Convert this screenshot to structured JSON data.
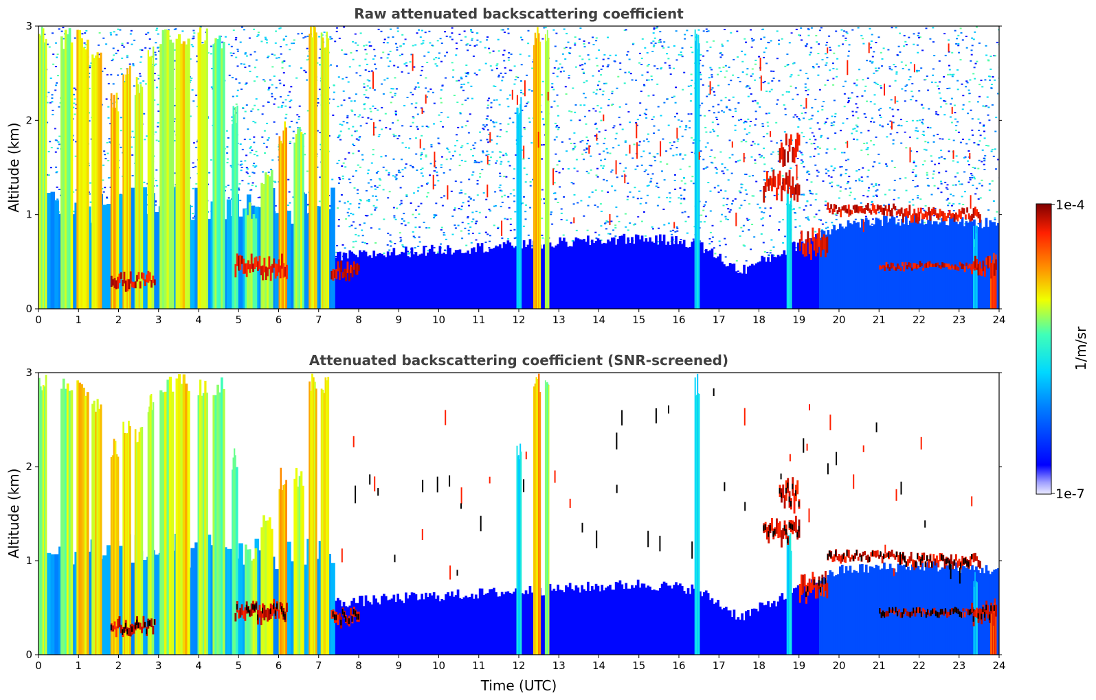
{
  "chart_data": [
    {
      "type": "heatmap",
      "title": "Raw attenuated backscattering coefficient",
      "xlabel": "",
      "ylabel": "Altitude (km)",
      "xlim": [
        0,
        24
      ],
      "ylim": [
        0,
        3
      ],
      "xticks": [
        "0",
        "1",
        "2",
        "3",
        "4",
        "5",
        "6",
        "7",
        "8",
        "9",
        "10",
        "11",
        "12",
        "13",
        "14",
        "15",
        "16",
        "17",
        "18",
        "19",
        "20",
        "21",
        "22",
        "23",
        "24"
      ],
      "yticks": [
        "0",
        "1",
        "2",
        "3"
      ],
      "screened": false,
      "features": {
        "vertical_streaks": [
          {
            "x": 0.1,
            "w": 0.2,
            "top": 3.0,
            "level": 0.62
          },
          {
            "x": 0.7,
            "w": 0.3,
            "top": 3.0,
            "level": 0.62
          },
          {
            "x": 1.1,
            "w": 0.3,
            "top": 3.0,
            "level": 0.72
          },
          {
            "x": 1.45,
            "w": 0.25,
            "top": 2.8,
            "level": 0.7
          },
          {
            "x": 1.9,
            "w": 0.2,
            "top": 2.3,
            "level": 0.72
          },
          {
            "x": 2.2,
            "w": 0.2,
            "top": 2.6,
            "level": 0.7
          },
          {
            "x": 2.5,
            "w": 0.2,
            "top": 2.5,
            "level": 0.66
          },
          {
            "x": 2.8,
            "w": 0.15,
            "top": 2.8,
            "level": 0.62
          },
          {
            "x": 3.2,
            "w": 0.35,
            "top": 3.0,
            "level": 0.62
          },
          {
            "x": 3.6,
            "w": 0.35,
            "top": 3.0,
            "level": 0.7
          },
          {
            "x": 4.1,
            "w": 0.25,
            "top": 3.0,
            "level": 0.64
          },
          {
            "x": 4.5,
            "w": 0.3,
            "top": 3.0,
            "level": 0.58
          },
          {
            "x": 4.9,
            "w": 0.15,
            "top": 2.2,
            "level": 0.56
          },
          {
            "x": 5.3,
            "w": 0.3,
            "top": 1.2,
            "level": 0.6
          },
          {
            "x": 5.7,
            "w": 0.3,
            "top": 1.5,
            "level": 0.64
          },
          {
            "x": 6.1,
            "w": 0.2,
            "top": 2.0,
            "level": 0.74
          },
          {
            "x": 6.5,
            "w": 0.25,
            "top": 2.0,
            "level": 0.62
          },
          {
            "x": 6.85,
            "w": 0.2,
            "top": 3.0,
            "level": 0.7
          },
          {
            "x": 7.15,
            "w": 0.2,
            "top": 3.0,
            "level": 0.66
          },
          {
            "x": 12.0,
            "w": 0.12,
            "top": 2.3,
            "level": 0.44
          },
          {
            "x": 12.45,
            "w": 0.18,
            "top": 3.0,
            "level": 0.74
          },
          {
            "x": 12.7,
            "w": 0.1,
            "top": 3.0,
            "level": 0.6
          },
          {
            "x": 16.45,
            "w": 0.12,
            "top": 3.0,
            "level": 0.42
          },
          {
            "x": 18.75,
            "w": 0.12,
            "top": 1.3,
            "level": 0.44
          },
          {
            "x": 23.4,
            "w": 0.1,
            "top": 0.9,
            "level": 0.4
          },
          {
            "x": 23.85,
            "w": 0.15,
            "top": 0.6,
            "level": 0.86
          }
        ],
        "cloud_layers": [
          {
            "x0": 1.8,
            "x1": 2.9,
            "y": 0.3,
            "thickness": 0.12
          },
          {
            "x0": 4.9,
            "x1": 6.2,
            "y": 0.45,
            "thickness": 0.15
          },
          {
            "x0": 7.3,
            "x1": 8.0,
            "y": 0.4,
            "thickness": 0.12
          },
          {
            "x0": 18.1,
            "x1": 19.0,
            "y": 1.3,
            "thickness": 0.18
          },
          {
            "x0": 18.5,
            "x1": 19.0,
            "y": 1.7,
            "thickness": 0.2
          },
          {
            "x0": 19.0,
            "x1": 19.7,
            "y": 0.7,
            "thickness": 0.2
          },
          {
            "x0": 19.7,
            "x1": 21.5,
            "y": 1.05,
            "thickness": 0.08
          },
          {
            "x0": 21.5,
            "x1": 23.5,
            "y": 1.0,
            "thickness": 0.1
          },
          {
            "x0": 21.0,
            "x1": 23.5,
            "y": 0.45,
            "thickness": 0.06
          },
          {
            "x0": 23.3,
            "x1": 23.9,
            "y": 0.45,
            "thickness": 0.15
          }
        ],
        "boundary_layer_top": [
          {
            "x": 7.3,
            "y": 0.55
          },
          {
            "x": 9.0,
            "y": 0.6
          },
          {
            "x": 11.0,
            "y": 0.65
          },
          {
            "x": 13.0,
            "y": 0.7
          },
          {
            "x": 15.0,
            "y": 0.75
          },
          {
            "x": 16.4,
            "y": 0.7
          },
          {
            "x": 17.5,
            "y": 0.4
          },
          {
            "x": 18.8,
            "y": 0.65
          },
          {
            "x": 20.0,
            "y": 0.9
          },
          {
            "x": 22.0,
            "y": 0.95
          },
          {
            "x": 24.0,
            "y": 0.9
          }
        ]
      }
    },
    {
      "type": "heatmap",
      "title": "Attenuated backscattering coefficient (SNR-screened)",
      "xlabel": "Time (UTC)",
      "ylabel": "Altitude (km)",
      "xlim": [
        0,
        24
      ],
      "ylim": [
        0,
        3
      ],
      "xticks": [
        "0",
        "1",
        "2",
        "3",
        "4",
        "5",
        "6",
        "7",
        "8",
        "9",
        "10",
        "11",
        "12",
        "13",
        "14",
        "15",
        "16",
        "17",
        "18",
        "19",
        "20",
        "21",
        "22",
        "23",
        "24"
      ],
      "yticks": [
        "0",
        "1",
        "2",
        "3"
      ],
      "screened": true
    }
  ],
  "colorbar": {
    "label": "1/m/sr",
    "max_label": "1e-4",
    "min_label": "1e-7",
    "scale": "log",
    "colormap": "jet",
    "colors": [
      "#ececff",
      "#0000ff",
      "#00c0ff",
      "#40ffb8",
      "#f0ff00",
      "#ff8000",
      "#ff2000",
      "#800000"
    ]
  }
}
